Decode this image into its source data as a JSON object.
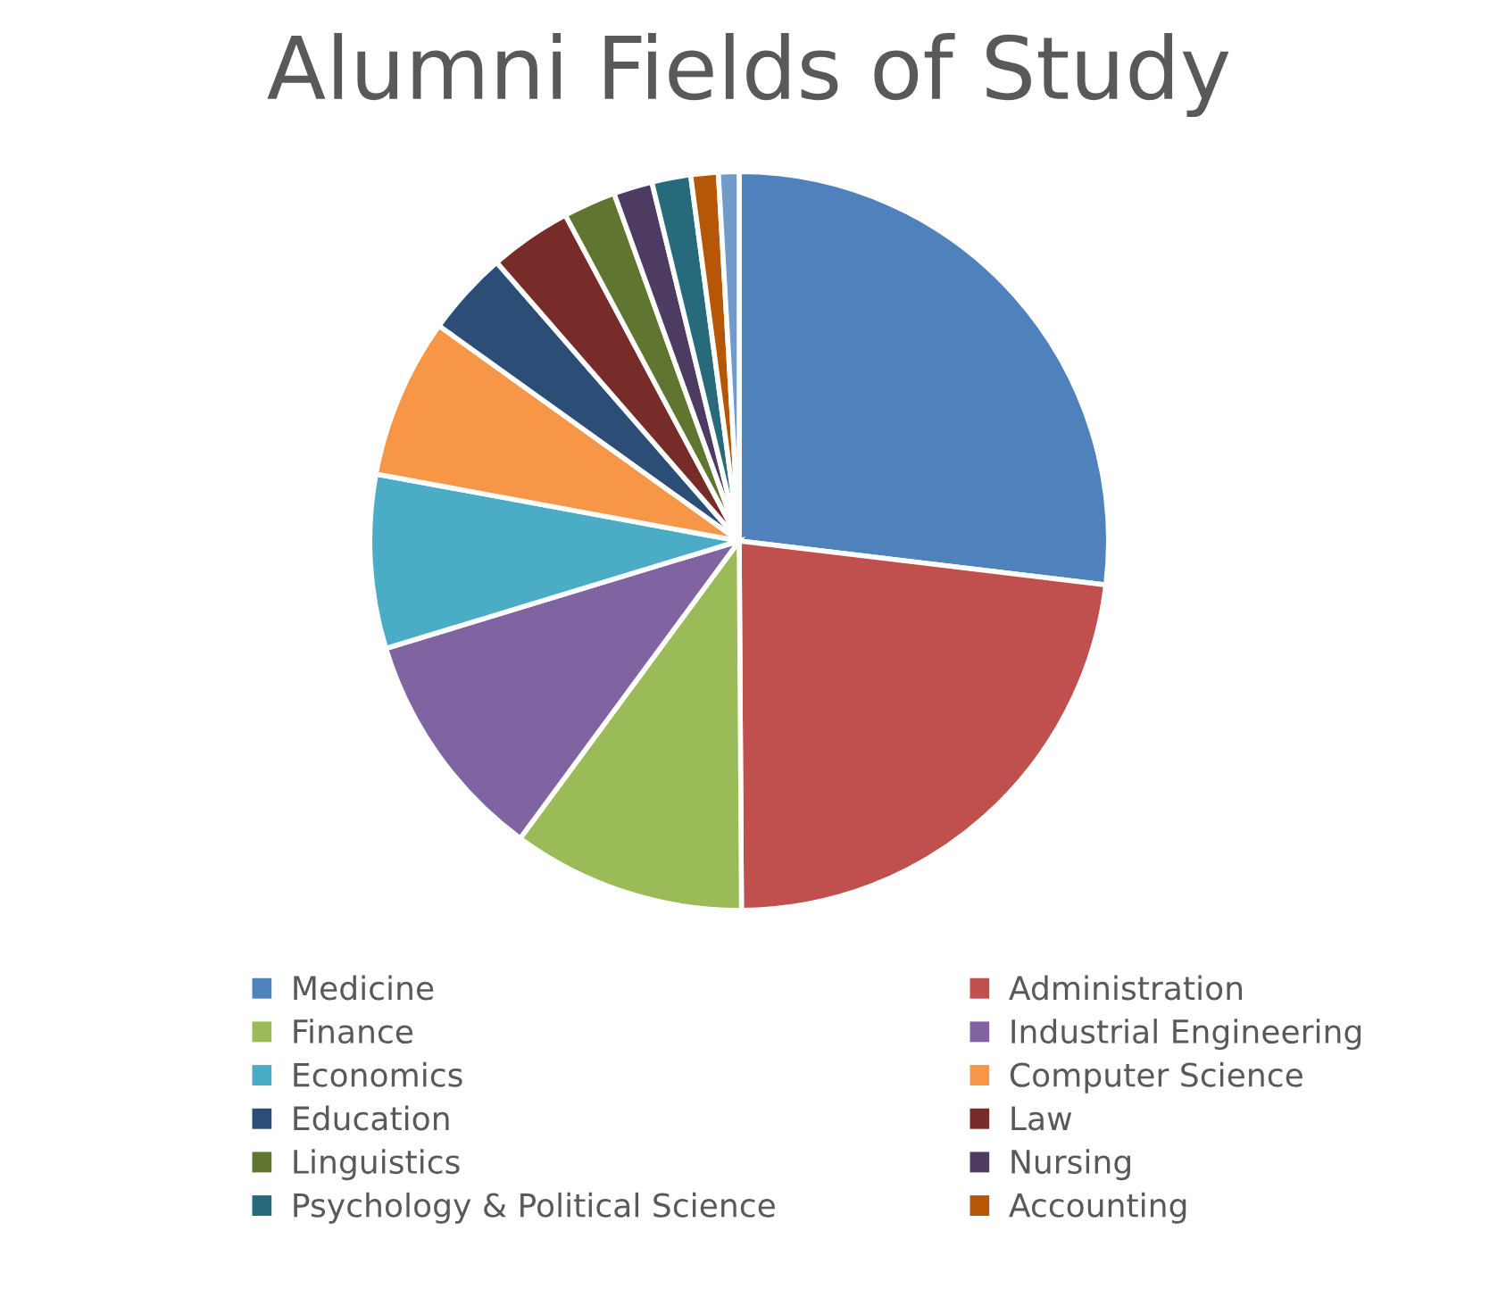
{
  "chart_data": {
    "type": "pie",
    "title": "Alumni Fields of Study",
    "categories": [
      "Medicine",
      "Administration",
      "Finance",
      "Industrial Engineering",
      "Economics",
      "Computer Science",
      "Education",
      "Law",
      "Linguistics",
      "Nursing",
      "Psychology & Political Science",
      "Accounting",
      null
    ],
    "values": [
      26.9,
      23.0,
      10.2,
      10.2,
      7.6,
      7.0,
      3.7,
      3.6,
      2.3,
      1.7,
      1.7,
      1.2,
      0.9
    ],
    "colors": [
      "#4f81bd",
      "#c0504d",
      "#9bbb59",
      "#8064a2",
      "#4bacc6",
      "#f79646",
      "#2c4d75",
      "#772c2a",
      "#5f7530",
      "#4d3b62",
      "#276a7c",
      "#b65708",
      "#729aca"
    ],
    "legend": "bottom"
  }
}
